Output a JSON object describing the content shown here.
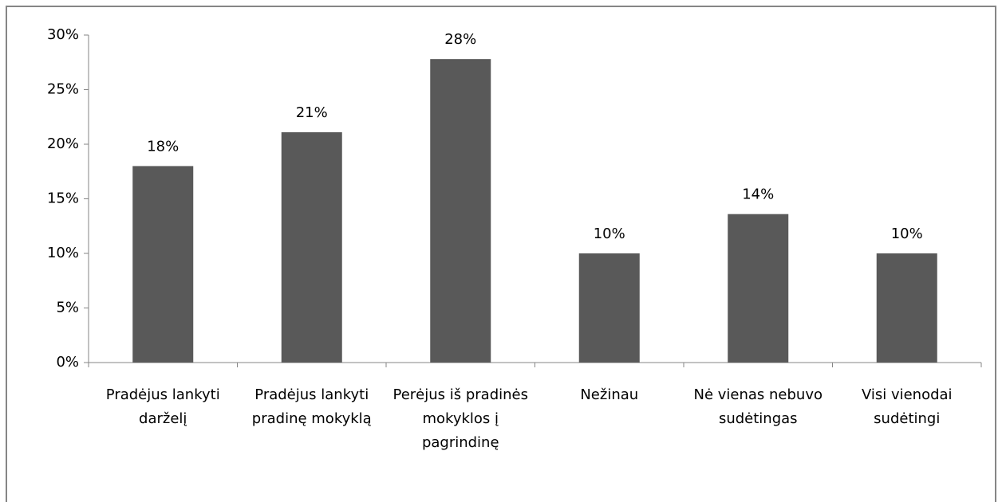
{
  "chart_data": {
    "type": "bar",
    "categories": [
      "Pradėjus lankyti darželį",
      "Pradėjus lankyti pradinę mokyklą",
      "Perėjus iš pradinės mokyklos į pagrindinę",
      "Nežinau",
      "Nė vienas nebuvo sudėtingas",
      "Visi vienodai sudėtingi"
    ],
    "values": [
      18,
      21.1,
      27.8,
      10,
      13.6,
      10
    ],
    "value_labels": [
      "18%",
      "21%",
      "28%",
      "10%",
      "14%",
      "10%"
    ],
    "color": "#595959",
    "ylim": [
      0,
      30
    ],
    "yticks": [
      {
        "value": 0,
        "label": "0%"
      },
      {
        "value": 5,
        "label": "5%"
      },
      {
        "value": 10,
        "label": "10%"
      },
      {
        "value": 15,
        "label": "15%"
      },
      {
        "value": 20,
        "label": "20%"
      },
      {
        "value": 25,
        "label": "25%"
      },
      {
        "value": 30,
        "label": "30%"
      }
    ],
    "grid": false
  }
}
